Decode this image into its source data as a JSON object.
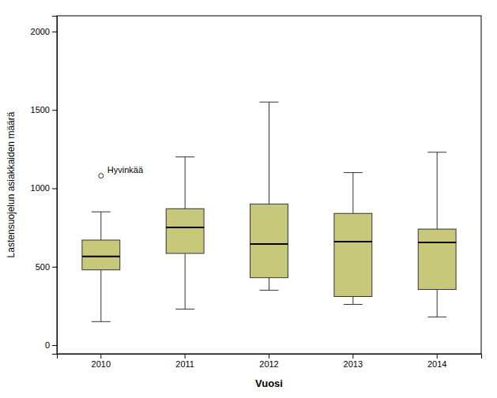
{
  "chart_data": {
    "type": "box",
    "categories": [
      "2010",
      "2011",
      "2012",
      "2013",
      "2014"
    ],
    "boxes": [
      {
        "whislo": 150,
        "q1": 480,
        "med": 565,
        "q3": 670,
        "whishi": 850,
        "fliers": [
          1080
        ]
      },
      {
        "whislo": 230,
        "q1": 585,
        "med": 750,
        "q3": 870,
        "whishi": 1200,
        "fliers": []
      },
      {
        "whislo": 350,
        "q1": 430,
        "med": 645,
        "q3": 900,
        "whishi": 1550,
        "fliers": []
      },
      {
        "whislo": 260,
        "q1": 310,
        "med": 660,
        "q3": 840,
        "whishi": 1100,
        "fliers": []
      },
      {
        "whislo": 180,
        "q1": 355,
        "med": 655,
        "q3": 740,
        "whishi": 1230,
        "fliers": []
      }
    ],
    "annotations": [
      {
        "text": "Hyvinkää",
        "category": "2010",
        "value": 1080
      }
    ],
    "x_label": "Vuosi",
    "y_label": "Lastensuojelun asiakkaiden määrä",
    "ylim": [
      -55,
      2100
    ],
    "yticks": [
      0,
      500,
      1000,
      1500,
      2000
    ],
    "color": "#c8c87a",
    "grid": false
  }
}
